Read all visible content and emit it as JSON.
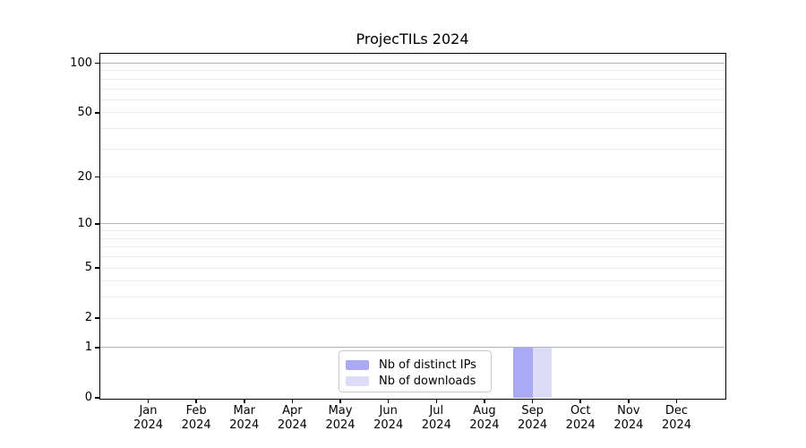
{
  "chart_data": {
    "type": "bar",
    "title": "ProjecTILs 2024",
    "categories": [
      "Jan",
      "Feb",
      "Mar",
      "Apr",
      "May",
      "Jun",
      "Jul",
      "Aug",
      "Sep",
      "Oct",
      "Nov",
      "Dec"
    ],
    "x_tick_year_line": "2024",
    "series": [
      {
        "name": "Nb of distinct IPs",
        "color": "#a9a9f5",
        "values": [
          0,
          0,
          0,
          0,
          0,
          0,
          0,
          0,
          1,
          0,
          0,
          0
        ]
      },
      {
        "name": "Nb of downloads",
        "color": "#dcdcf9",
        "values": [
          0,
          0,
          0,
          0,
          0,
          0,
          0,
          0,
          1,
          0,
          0,
          0
        ]
      }
    ],
    "yscale": "log1p",
    "ylim": [
      0,
      114
    ],
    "y_tick_values": [
      0,
      1,
      2,
      5,
      10,
      20,
      50,
      100
    ],
    "y_major_gridlines": [
      1,
      10,
      100
    ],
    "y_minor_gridlines": [
      2,
      3,
      4,
      5,
      6,
      7,
      8,
      9,
      20,
      30,
      40,
      50,
      60,
      70,
      80,
      90
    ],
    "legend_position": "lower center",
    "grid": true,
    "colors": {
      "bar_distinct_ips": "#a9a9f5",
      "bar_downloads": "#dcdcf9",
      "grid_minor": "#ededed",
      "grid_major": "#b3b3b3",
      "axis": "#000000",
      "legend_border": "#c9c9c9",
      "background": "#ffffff"
    }
  }
}
